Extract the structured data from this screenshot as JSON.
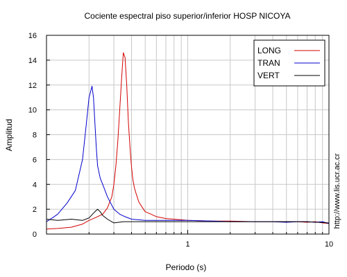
{
  "chart_data": {
    "type": "line",
    "title": "Cociente espectral piso superior/inferior  HOSP NICOYA",
    "xlabel": "Periodo (s)",
    "ylabel": "Amplitud",
    "side_label": "http://www.lis.ucr.ac.cr",
    "x_scale": "log",
    "xlim": [
      0.1,
      10
    ],
    "ylim": [
      0,
      16
    ],
    "y_ticks": [
      0,
      2,
      4,
      6,
      8,
      10,
      12,
      14,
      16
    ],
    "x_tick_labels": [
      {
        "value": 1,
        "label": "1"
      },
      {
        "value": 10,
        "label": "10"
      }
    ],
    "grid": true,
    "legend_position": "top-right",
    "series": [
      {
        "name": "LONG",
        "color": "#d40000",
        "x": [
          0.1,
          0.12,
          0.15,
          0.18,
          0.2,
          0.22,
          0.25,
          0.27,
          0.29,
          0.3,
          0.31,
          0.32,
          0.33,
          0.34,
          0.35,
          0.36,
          0.37,
          0.38,
          0.39,
          0.4,
          0.41,
          0.42,
          0.43,
          0.45,
          0.48,
          0.5,
          0.55,
          0.6,
          0.7,
          0.8,
          0.9,
          1,
          1.5,
          2,
          3,
          4,
          5,
          6,
          7,
          8,
          9,
          10
        ],
        "y": [
          0.4,
          0.45,
          0.55,
          0.8,
          1.1,
          1.3,
          1.6,
          2.1,
          3,
          4,
          5.5,
          7.5,
          10,
          12.5,
          14.6,
          14.2,
          12,
          9,
          7,
          5.4,
          4.3,
          3.7,
          3.3,
          2.6,
          2.1,
          1.8,
          1.6,
          1.4,
          1.25,
          1.2,
          1.15,
          1.1,
          1.05,
          1.05,
          1,
          1,
          1,
          1,
          0.95,
          1,
          0.9,
          0.85
        ]
      },
      {
        "name": "TRAN",
        "color": "#0000cc",
        "x": [
          0.1,
          0.11,
          0.12,
          0.14,
          0.16,
          0.18,
          0.19,
          0.2,
          0.21,
          0.215,
          0.22,
          0.225,
          0.23,
          0.24,
          0.25,
          0.27,
          0.3,
          0.33,
          0.36,
          0.4,
          0.5,
          0.6,
          0.8,
          1,
          1.5,
          2,
          3,
          4,
          5,
          6,
          7,
          8,
          9,
          10
        ],
        "y": [
          1.0,
          1.3,
          1.6,
          2.5,
          3.5,
          6.0,
          8.5,
          11.0,
          11.9,
          11.0,
          9.0,
          7.0,
          5.5,
          4.5,
          4.0,
          3.0,
          2.0,
          1.6,
          1.4,
          1.2,
          1.1,
          1.1,
          1.1,
          1.1,
          1.05,
          1.0,
          1.0,
          1.0,
          0.95,
          1.0,
          1.0,
          0.95,
          1.0,
          0.85
        ]
      },
      {
        "name": "VERT",
        "color": "#000000",
        "x": [
          0.1,
          0.12,
          0.15,
          0.18,
          0.2,
          0.22,
          0.23,
          0.24,
          0.25,
          0.27,
          0.3,
          0.35,
          0.4,
          0.5,
          0.7,
          1,
          2,
          3,
          5,
          7,
          10
        ],
        "y": [
          1.2,
          1.1,
          1.2,
          1.1,
          1.3,
          1.8,
          2.0,
          1.8,
          1.5,
          1.2,
          0.9,
          1.0,
          1.0,
          1.0,
          1.0,
          1.0,
          1.0,
          1.0,
          1.0,
          1.0,
          0.9
        ]
      }
    ]
  }
}
